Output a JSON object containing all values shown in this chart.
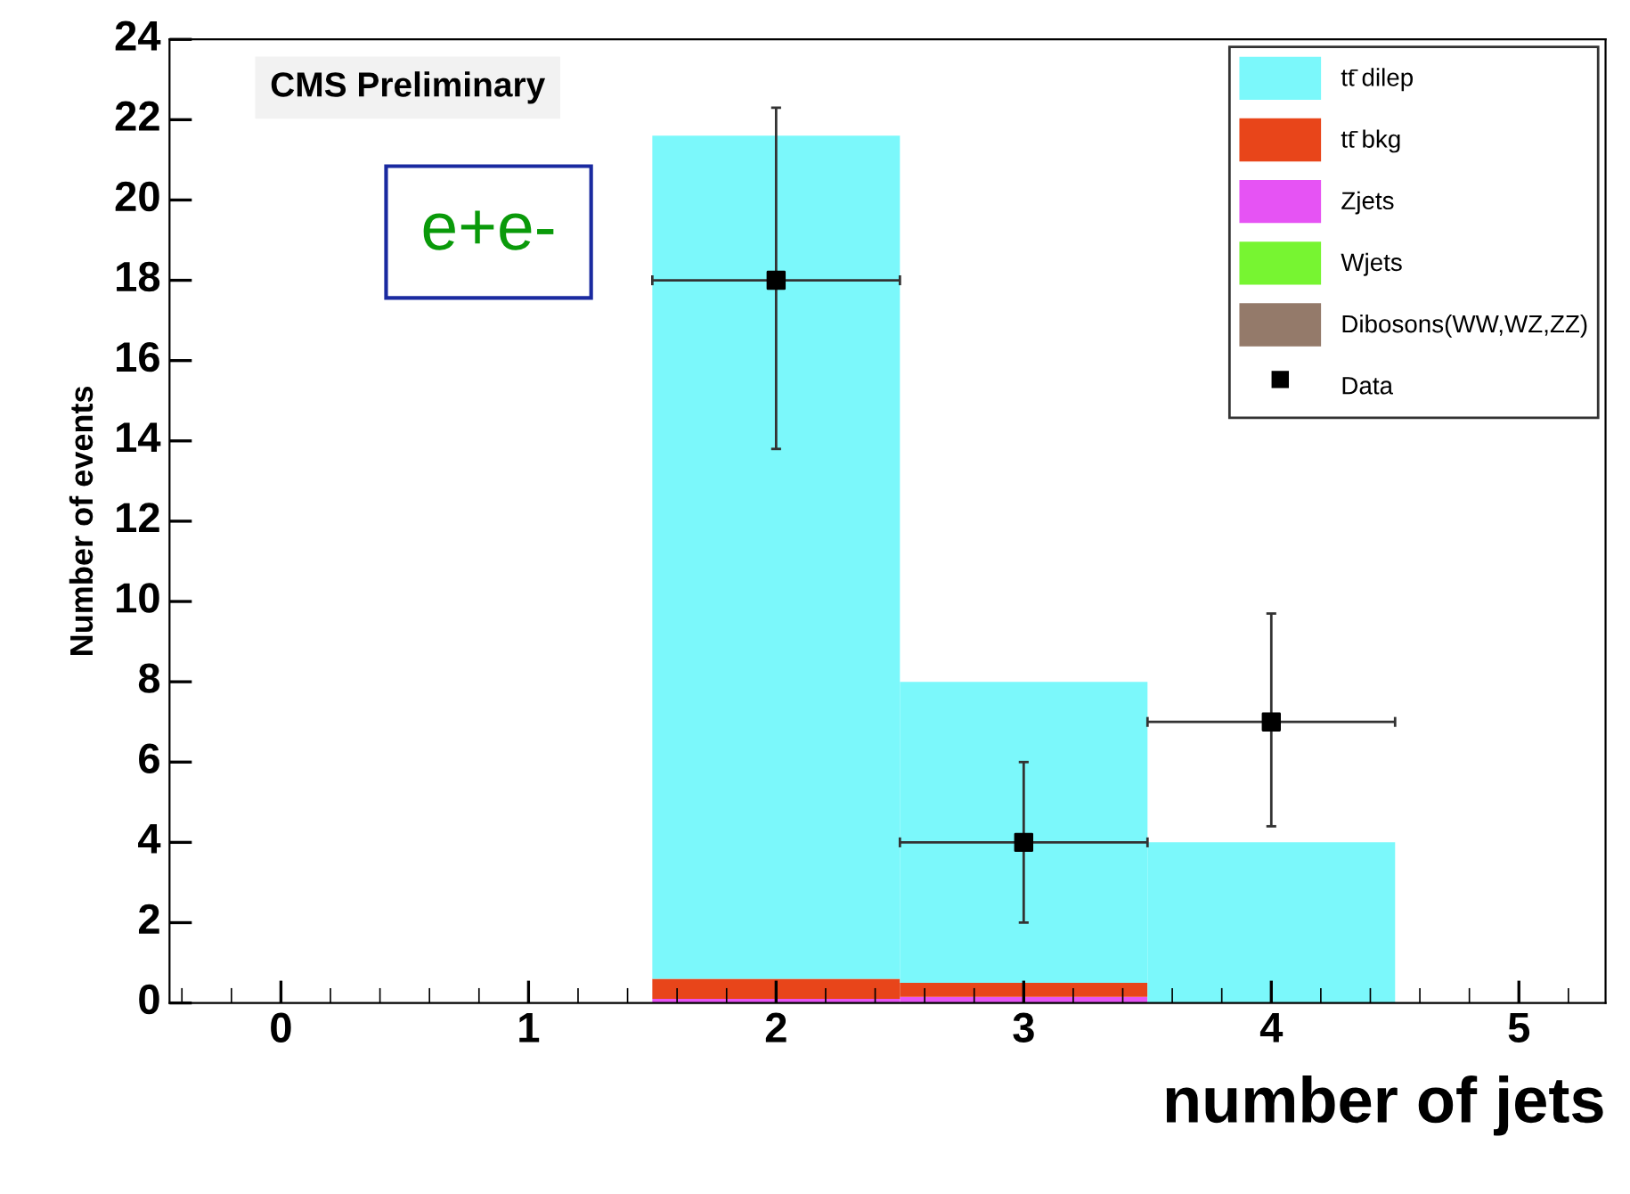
{
  "chart_data": {
    "type": "bar",
    "stacked": true,
    "xlabel": "number of jets",
    "ylabel": "Number of events",
    "x": [
      2,
      3,
      4
    ],
    "xlim": [
      -0.45,
      5.35
    ],
    "xticks": [
      0,
      1,
      2,
      3,
      4,
      5
    ],
    "ylim": [
      0,
      24
    ],
    "yticks": [
      0,
      2,
      4,
      6,
      8,
      10,
      12,
      14,
      16,
      18,
      20,
      22,
      24
    ],
    "series": [
      {
        "name": "Dibosons(WW,WZ,ZZ)",
        "color": "#947a6a",
        "values": [
          null,
          null,
          null
        ]
      },
      {
        "name": "Wjets",
        "color": "#77f531",
        "values": [
          null,
          null,
          null
        ]
      },
      {
        "name": "Zjets",
        "color": "#e653f4",
        "values": [
          0.1,
          0.15,
          null
        ]
      },
      {
        "name": "tt̄ bkg",
        "color": "#e8451a",
        "values": [
          0.5,
          0.35,
          null
        ]
      },
      {
        "name": "tt̄ dilep",
        "color": "#7bf8fb",
        "values": [
          21.0,
          7.5,
          4.0
        ]
      },
      {
        "name": "Data",
        "type": "scatter",
        "color": "#000000",
        "marker": "square",
        "x": [
          2,
          3,
          4
        ],
        "values": [
          18,
          4,
          7
        ],
        "errors": [
          [
            13.8,
            22.3
          ],
          [
            2.0,
            6.0
          ],
          [
            4.4,
            9.7
          ]
        ],
        "xerrors": [
          0.5,
          0.5,
          0.5
        ]
      }
    ],
    "annotations": [
      "CMS Preliminary",
      "e+e-"
    ],
    "legend": "top right",
    "grid": false
  }
}
